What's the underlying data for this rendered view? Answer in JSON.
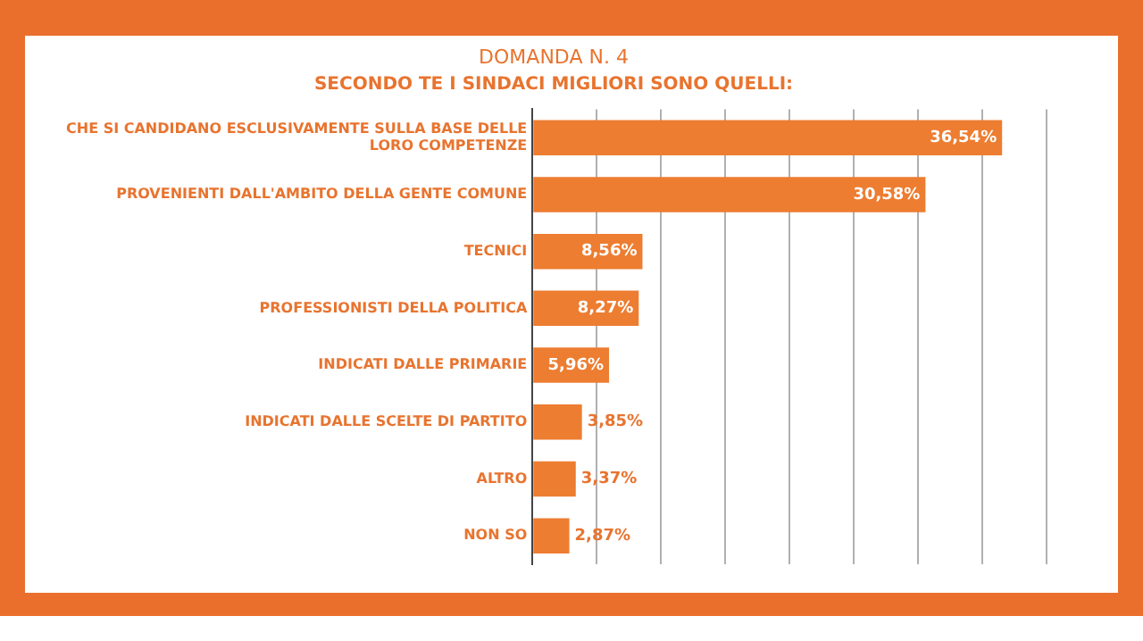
{
  "chart_data": {
    "type": "bar",
    "orientation": "horizontal",
    "title": "DOMANDA N. 4",
    "subtitle": "SECONDO TE I SINDACI MIGLIORI SONO QUELLI:",
    "categories": [
      "CHE SI CANDIDANO ESCLUSIVAMENTE SULLA BASE DELLE LORO COMPETENZE",
      "PROVENIENTI DALL'AMBITO DELLA GENTE COMUNE",
      "TECNICI",
      "PROFESSIONISTI DELLA POLITICA",
      "INDICATI DALLE PRIMARIE",
      "INDICATI DALLE SCELTE DI PARTITO",
      "ALTRO",
      "NON SO"
    ],
    "values": [
      36.54,
      30.58,
      8.56,
      8.27,
      5.96,
      3.85,
      3.37,
      2.87
    ],
    "value_labels": [
      "36,54%",
      "30,58%",
      "8,56%",
      "8,27%",
      "5,96%",
      "3,85%",
      "3,37%",
      "2,87%"
    ],
    "color": "#ed7d31",
    "xlim": [
      0,
      40
    ],
    "xticks": [
      {
        "value": 0,
        "label": null
      },
      {
        "value": 5,
        "label": null
      },
      {
        "value": 10,
        "label": null
      },
      {
        "value": 15,
        "label": null
      },
      {
        "value": 20,
        "label": null
      },
      {
        "value": 25,
        "label": null
      },
      {
        "value": 30,
        "label": null
      },
      {
        "value": 35,
        "label": null
      },
      {
        "value": 40,
        "label": null
      }
    ],
    "grid": "x",
    "tick_labels": "y",
    "legend": false
  }
}
